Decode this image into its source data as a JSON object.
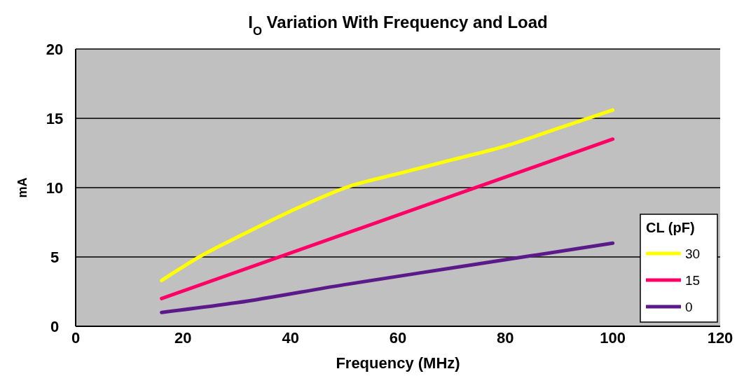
{
  "chart_data": {
    "type": "line",
    "title": "I$_{O}$ Variation With Frequency and Load",
    "xlabel": "Frequency (MHz)",
    "ylabel": "mA",
    "legend_title": "CL (pF)",
    "legend": "bottom right",
    "grid": "y",
    "line_style": "solid",
    "marker": "none",
    "xlim": [
      0,
      120
    ],
    "xticks": [
      0,
      20,
      40,
      60,
      80,
      100,
      120
    ],
    "ylim": [
      0,
      20
    ],
    "yticks": [
      0,
      5,
      10,
      15,
      20
    ],
    "series": [
      {
        "name": "30",
        "color": "#ffff00",
        "x": [
          16,
          23,
          31,
          40,
          51,
          60,
          70,
          80,
          90,
          100
        ],
        "values": [
          3.3,
          5,
          6.6,
          8.3,
          10.1,
          11,
          12,
          13,
          14.3,
          15.6
        ]
      },
      {
        "name": "15",
        "color": "#ff0066",
        "x": [
          16,
          100
        ],
        "values": [
          2,
          13.5
        ]
      },
      {
        "name": "0",
        "color": "#5a1a8a",
        "x": [
          16,
          30,
          50,
          70,
          85,
          100
        ],
        "values": [
          1,
          1.7,
          3,
          4.2,
          5.1,
          6
        ]
      }
    ]
  }
}
